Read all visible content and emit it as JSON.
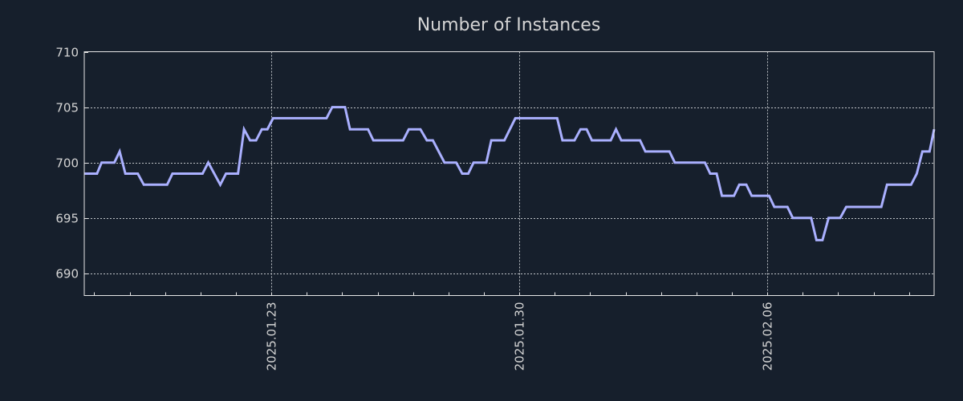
{
  "chart_data": {
    "type": "line",
    "title": "Number of Instances",
    "xlabel": "",
    "ylabel": "",
    "x_unit": "days since 2025-01-23 00:00",
    "xlim": [
      -5.28,
      18.71
    ],
    "ylim": [
      688,
      710
    ],
    "grid": true,
    "x_ticks": [
      {
        "value": 0,
        "label": "2025.01.23"
      },
      {
        "value": 7,
        "label": "2025.01.30"
      },
      {
        "value": 14,
        "label": "2025.02.06"
      }
    ],
    "y_ticks": [
      {
        "value": 690,
        "label": "690"
      },
      {
        "value": 695,
        "label": "695"
      },
      {
        "value": 700,
        "label": "700"
      },
      {
        "value": 705,
        "label": "705"
      },
      {
        "value": 710,
        "label": "710"
      }
    ],
    "colors": {
      "background": "#161f2c",
      "line": "#aab0ff",
      "text": "#d4d4d4",
      "grid": "#bfc3c8"
    },
    "series": [
      {
        "name": "Number of Instances",
        "x": [
          -5.28,
          -4.92,
          -4.79,
          -4.43,
          -4.28,
          -4.12,
          -3.77,
          -3.6,
          -2.94,
          -2.79,
          -1.94,
          -1.78,
          -1.44,
          -1.28,
          -0.94,
          -0.77,
          -0.6,
          -0.43,
          -0.27,
          -0.11,
          0.05,
          1.56,
          1.72,
          2.08,
          2.22,
          2.73,
          2.88,
          3.72,
          3.88,
          4.21,
          4.39,
          4.56,
          4.89,
          5.22,
          5.39,
          5.56,
          5.71,
          6.07,
          6.21,
          6.58,
          6.89,
          8.07,
          8.22,
          8.56,
          8.73,
          8.9,
          9.05,
          9.58,
          9.73,
          9.88,
          10.41,
          10.56,
          11.24,
          11.39,
          12.24,
          12.39,
          12.57,
          12.72,
          13.06,
          13.21,
          13.41,
          13.56,
          14.05,
          14.2,
          14.57,
          14.72,
          15.24,
          15.39,
          15.56,
          15.73,
          16.06,
          16.23,
          17.22,
          17.38,
          18.06,
          18.22,
          18.38,
          18.58,
          18.71
        ],
        "y": [
          699,
          699,
          700,
          700,
          701,
          699,
          699,
          698,
          698,
          699,
          699,
          700,
          698,
          699,
          699,
          703,
          702,
          702,
          703,
          703,
          704,
          704,
          705,
          705,
          703,
          703,
          702,
          702,
          703,
          703,
          702,
          702,
          700,
          700,
          699,
          699,
          700,
          700,
          702,
          702,
          704,
          704,
          702,
          702,
          703,
          703,
          702,
          702,
          703,
          702,
          702,
          701,
          701,
          700,
          700,
          699,
          699,
          697,
          697,
          698,
          698,
          697,
          697,
          696,
          696,
          695,
          695,
          693,
          693,
          695,
          695,
          696,
          696,
          698,
          698,
          699,
          701,
          701,
          703
        ]
      }
    ]
  }
}
